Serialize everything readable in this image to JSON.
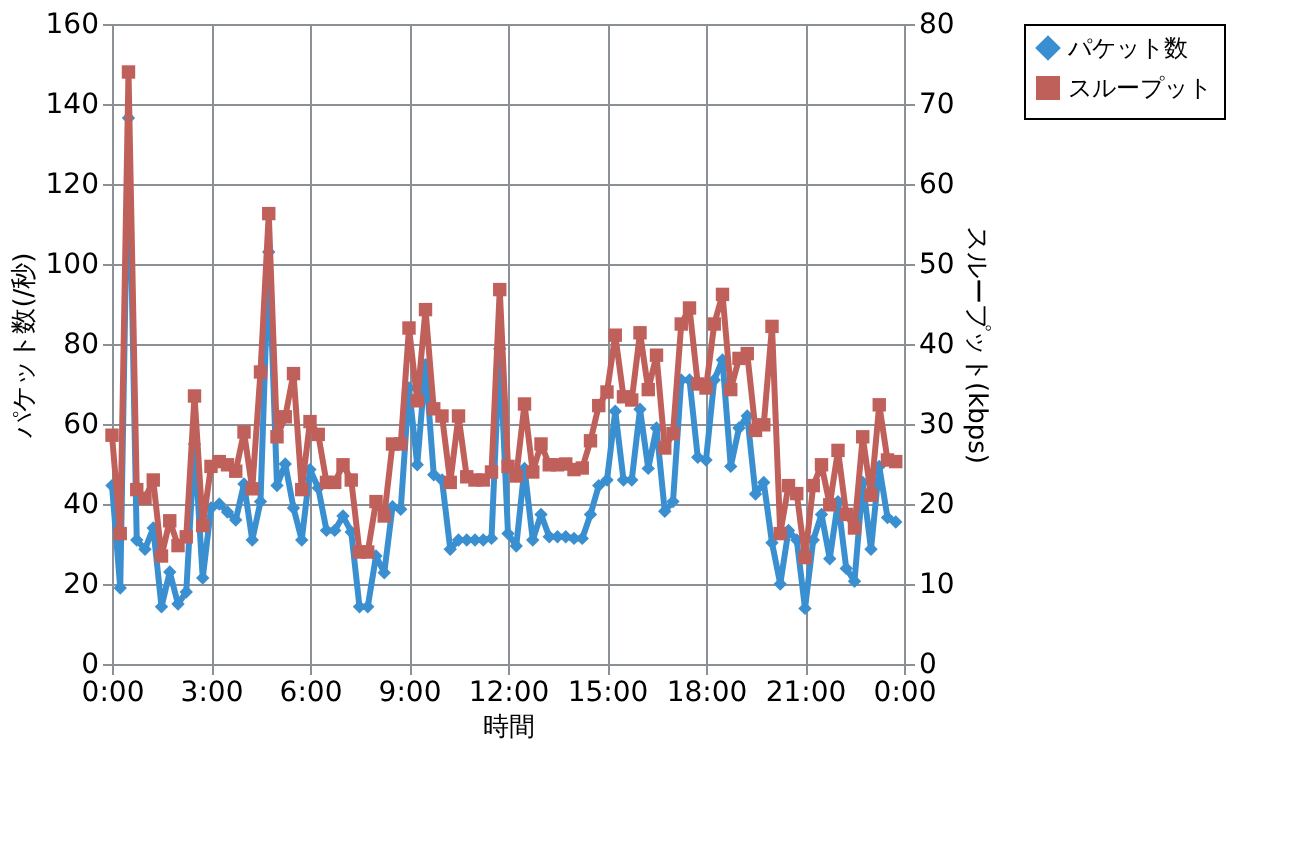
{
  "chart_data": {
    "type": "line",
    "xlabel": "時間",
    "ylabel": "パケット数(/秒)",
    "y2label": "スループット(kbps)",
    "x": [
      0,
      0.25,
      0.5,
      0.75,
      1,
      1.25,
      1.5,
      1.75,
      2,
      2.25,
      2.5,
      2.75,
      3,
      3.25,
      3.5,
      3.75,
      4,
      4.25,
      4.5,
      4.75,
      5,
      5.25,
      5.5,
      5.75,
      6,
      6.25,
      6.5,
      6.75,
      7,
      7.25,
      7.5,
      7.75,
      8,
      8.25,
      8.5,
      8.75,
      9,
      9.25,
      9.5,
      9.75,
      10,
      10.25,
      10.5,
      10.75,
      11,
      11.25,
      11.5,
      11.75,
      12,
      12.25,
      12.5,
      12.75,
      13,
      13.25,
      13.5,
      13.75,
      14,
      14.25,
      14.5,
      14.75,
      15,
      15.25,
      15.5,
      15.75,
      16,
      16.25,
      16.5,
      16.75,
      17,
      17.25,
      17.5,
      17.75,
      18,
      18.25,
      18.5,
      18.75,
      19,
      19.25,
      19.5,
      19.75,
      20,
      20.25,
      20.5,
      20.75,
      21,
      21.25,
      21.5,
      21.75,
      22,
      22.25,
      22.5,
      22.75,
      23,
      23.25,
      23.5,
      23.75
    ],
    "series": [
      {
        "name": "パケット数",
        "color": "#3a8fd0",
        "marker": "diamond",
        "values": [
          44.6,
          19,
          136.5,
          31,
          28.7,
          34,
          14.3,
          23,
          15,
          18,
          55,
          21.5,
          39,
          40,
          38,
          36,
          45,
          31,
          40.6,
          103,
          44.6,
          50,
          39,
          31,
          48.6,
          44,
          33.4,
          33.4,
          37,
          33,
          14.3,
          14.3,
          27,
          22.8,
          39.3,
          38.7,
          69,
          49.8,
          74.8,
          47.3,
          46,
          28.7,
          31,
          31,
          31,
          31,
          31.4,
          78.8,
          32.6,
          29.5,
          48.9,
          31,
          37.4,
          31.8,
          31.8,
          31.8,
          31.4,
          31.4,
          37.4,
          44.6,
          46,
          63.2,
          46,
          46,
          63.7,
          48.9,
          59,
          38.2,
          40.6,
          71,
          71,
          51.7,
          51,
          71,
          76,
          49.4,
          59,
          62,
          42.5,
          45.4,
          30.3,
          20,
          33.4,
          31,
          13.9,
          31,
          37.4,
          26.3,
          40.6,
          23.9,
          20.7,
          45.4,
          28.7,
          49.4,
          36.6,
          35.5
        ]
      },
      {
        "name": "スループット",
        "color": "#c0605a",
        "marker": "square",
        "axis": "y2",
        "values": [
          28.6,
          16.3,
          74,
          21.8,
          20.7,
          23,
          13.5,
          17.9,
          14.8,
          15.9,
          33.5,
          17.3,
          24.7,
          25.3,
          24.9,
          24.1,
          29,
          21.9,
          36.5,
          56.3,
          28.4,
          30.9,
          36.3,
          21.8,
          30.3,
          28.7,
          22.7,
          22.7,
          24.9,
          23,
          14,
          14,
          20.3,
          18.5,
          27.5,
          27.5,
          42,
          32.9,
          44.3,
          31.9,
          31,
          22.7,
          31,
          23.4,
          23,
          23,
          24,
          46.8,
          24.7,
          23.5,
          32.5,
          24,
          27.5,
          24.9,
          24.9,
          25,
          24.3,
          24.5,
          27.9,
          32.3,
          34,
          41.1,
          33.4,
          33,
          41.4,
          34.3,
          38.6,
          27,
          28.8,
          42.5,
          44.5,
          35,
          34.5,
          42.5,
          46.2,
          34.3,
          38.2,
          38.8,
          29.2,
          29.9,
          42.2,
          16.3,
          22.3,
          21.3,
          13.3,
          22.3,
          24.9,
          19.9,
          26.7,
          18.7,
          17,
          28.4,
          21.1,
          32.4,
          25.5,
          25.3
        ]
      }
    ],
    "xlim": [
      0,
      24
    ],
    "xticks": [
      {
        "value": 0,
        "label": "0:00"
      },
      {
        "value": 3,
        "label": "3:00"
      },
      {
        "value": 6,
        "label": "6:00"
      },
      {
        "value": 9,
        "label": "9:00"
      },
      {
        "value": 12,
        "label": "12:00"
      },
      {
        "value": 15,
        "label": "15:00"
      },
      {
        "value": 18,
        "label": "18:00"
      },
      {
        "value": 21,
        "label": "21:00"
      },
      {
        "value": 24,
        "label": "0:00"
      }
    ],
    "ylim": [
      0,
      160
    ],
    "yticks": [
      0,
      20,
      40,
      60,
      80,
      100,
      120,
      140,
      160
    ],
    "y2lim": [
      0,
      80
    ],
    "y2ticks": [
      0,
      10,
      20,
      30,
      40,
      50,
      60,
      70,
      80
    ],
    "grid": true,
    "legend": "right",
    "line_style": "solid"
  }
}
